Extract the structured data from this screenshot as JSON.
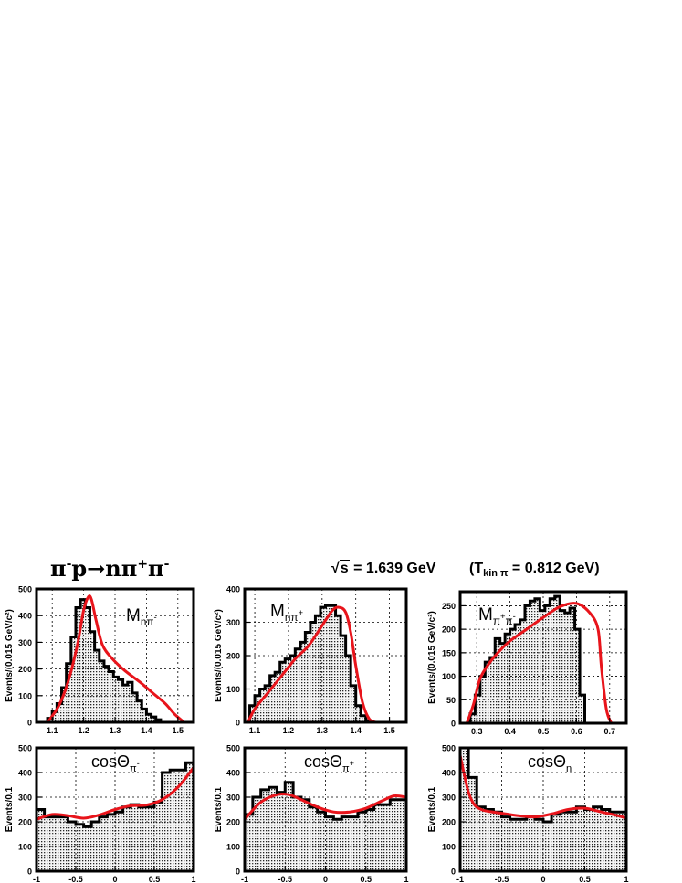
{
  "header": {
    "reaction": {
      "base": "π",
      "sup1": "-",
      "p": "p",
      "arrow": "→",
      "n": "n",
      "pi": "π",
      "sup2": "+",
      "pi2": "π",
      "sup3": "-"
    },
    "energy": {
      "root": "s",
      "rest": " = 1.639 GeV"
    },
    "tkin": {
      "open": "(T",
      "sub": "kin π",
      "rest": " = 0.812 GeV)"
    }
  },
  "colors": {
    "fit_curve": "#e8141b",
    "frame": "#000000",
    "grid": "#000000"
  },
  "chart_data": [
    {
      "type": "bar",
      "ylabel": "Events/(0.015 GeV/c²)",
      "label": {
        "base": "M",
        "sub": "nπ",
        "subsup": "-"
      },
      "xlim": [
        1.05,
        1.55
      ],
      "ylim": [
        0,
        500
      ],
      "xticks": [
        1.1,
        1.2,
        1.3,
        1.4,
        1.5
      ],
      "xtick_labels": [
        "1.1",
        "1.2",
        "1.3",
        "1.4",
        "1.5"
      ],
      "yticks": [
        0,
        100,
        200,
        300,
        400,
        500
      ],
      "ytick_labels": [
        "0",
        "100",
        "200",
        "300",
        "400",
        "500"
      ],
      "bin_start": 1.085,
      "bin_width": 0.015,
      "values": [
        15,
        40,
        70,
        130,
        220,
        320,
        430,
        460,
        430,
        340,
        270,
        230,
        210,
        190,
        170,
        160,
        140,
        150,
        110,
        80,
        50,
        30,
        20,
        10
      ],
      "fit": {
        "x": [
          1.085,
          1.12,
          1.15,
          1.18,
          1.2,
          1.215,
          1.225,
          1.24,
          1.26,
          1.29,
          1.33,
          1.38,
          1.42,
          1.46,
          1.49,
          1.52
        ],
        "y": [
          0,
          60,
          150,
          290,
          420,
          470,
          460,
          380,
          290,
          240,
          195,
          150,
          110,
          70,
          30,
          0
        ]
      }
    },
    {
      "type": "bar",
      "ylabel": "Events/(0.015 GeV/c²)",
      "label": {
        "base": "M",
        "sub": "nπ",
        "subsup": "+"
      },
      "xlim": [
        1.07,
        1.55
      ],
      "ylim": [
        0,
        400
      ],
      "xticks": [
        1.1,
        1.2,
        1.3,
        1.4,
        1.5
      ],
      "xtick_labels": [
        "1.1",
        "1.2",
        "1.3",
        "1.4",
        "1.5"
      ],
      "yticks": [
        0,
        100,
        200,
        300,
        400
      ],
      "ytick_labels": [
        "0",
        "100",
        "200",
        "300",
        "400"
      ],
      "bin_start": 1.085,
      "bin_width": 0.015,
      "values": [
        50,
        80,
        100,
        110,
        140,
        150,
        180,
        190,
        200,
        220,
        240,
        270,
        300,
        320,
        345,
        350,
        350,
        320,
        260,
        200,
        110,
        50,
        20,
        5
      ],
      "fit": {
        "x": [
          1.08,
          1.1,
          1.14,
          1.18,
          1.22,
          1.26,
          1.3,
          1.33,
          1.35,
          1.37,
          1.385,
          1.4,
          1.42,
          1.44,
          1.46
        ],
        "y": [
          0,
          40,
          90,
          140,
          190,
          230,
          290,
          335,
          345,
          330,
          270,
          170,
          60,
          10,
          0
        ]
      }
    },
    {
      "type": "bar",
      "ylabel": "Events/(0.015 GeV/c²)",
      "label": {
        "base": "M",
        "sub": "π",
        "subsup": "+",
        "sub2": "π",
        "sub2sup": "-"
      },
      "xlim": [
        0.25,
        0.75
      ],
      "ylim": [
        0,
        280
      ],
      "xticks": [
        0.3,
        0.4,
        0.5,
        0.6,
        0.7
      ],
      "xtick_labels": [
        "0.3",
        "0.4",
        "0.5",
        "0.6",
        "0.7"
      ],
      "yticks": [
        0,
        50,
        100,
        150,
        200,
        250
      ],
      "ytick_labels": [
        "0",
        "50",
        "100",
        "150",
        "200",
        "250"
      ],
      "bin_start": 0.28,
      "bin_width": 0.015,
      "values": [
        20,
        60,
        100,
        130,
        140,
        180,
        170,
        190,
        200,
        210,
        220,
        250,
        260,
        265,
        240,
        250,
        265,
        270,
        240,
        235,
        245,
        200,
        60,
        0
      ],
      "fit": {
        "x": [
          0.27,
          0.29,
          0.31,
          0.34,
          0.37,
          0.4,
          0.45,
          0.5,
          0.55,
          0.6,
          0.64,
          0.665,
          0.675,
          0.69,
          0.705
        ],
        "y": [
          0,
          40,
          95,
          130,
          155,
          175,
          200,
          225,
          248,
          255,
          235,
          200,
          120,
          30,
          0
        ]
      }
    },
    {
      "type": "bar",
      "ylabel": "Events/0.1",
      "label": {
        "base": "cosΘ",
        "sub": "π",
        "subsup": "-"
      },
      "xlim": [
        -1,
        1
      ],
      "ylim": [
        0,
        500
      ],
      "xticks": [
        -1,
        -0.5,
        0,
        0.5,
        1
      ],
      "xtick_labels": [
        "-1",
        "-0.5",
        "0",
        "0.5",
        "1"
      ],
      "yticks": [
        0,
        100,
        200,
        300,
        400,
        500
      ],
      "ytick_labels": [
        "0",
        "100",
        "200",
        "300",
        "400",
        "500"
      ],
      "bin_start": -1,
      "bin_width": 0.1,
      "values": [
        250,
        220,
        220,
        220,
        200,
        190,
        180,
        200,
        220,
        230,
        240,
        260,
        270,
        260,
        260,
        280,
        400,
        410,
        410,
        440
      ],
      "fit": {
        "x": [
          -1,
          -0.8,
          -0.6,
          -0.4,
          -0.2,
          0,
          0.2,
          0.4,
          0.6,
          0.8,
          1
        ],
        "y": [
          210,
          230,
          225,
          215,
          228,
          250,
          265,
          268,
          290,
          340,
          420
        ]
      }
    },
    {
      "type": "bar",
      "ylabel": "Events/0.1",
      "label": {
        "base": "cosΘ",
        "sub": "π",
        "subsup": "+"
      },
      "xlim": [
        -1,
        1
      ],
      "ylim": [
        0,
        500
      ],
      "xticks": [
        -1,
        -0.5,
        0,
        0.5,
        1
      ],
      "xtick_labels": [
        "-1",
        "-0.5",
        "0",
        "0.5",
        "1"
      ],
      "yticks": [
        0,
        100,
        200,
        300,
        400,
        500
      ],
      "ytick_labels": [
        "0",
        "100",
        "200",
        "300",
        "400",
        "500"
      ],
      "bin_start": -1,
      "bin_width": 0.1,
      "values": [
        230,
        300,
        330,
        340,
        320,
        360,
        300,
        290,
        260,
        240,
        220,
        210,
        220,
        220,
        240,
        250,
        270,
        270,
        290,
        290
      ],
      "fit": {
        "x": [
          -1,
          -0.8,
          -0.6,
          -0.45,
          -0.3,
          -0.1,
          0.1,
          0.3,
          0.5,
          0.7,
          0.85,
          1
        ],
        "y": [
          210,
          280,
          310,
          310,
          290,
          260,
          240,
          240,
          255,
          285,
          305,
          300
        ]
      }
    },
    {
      "type": "bar",
      "ylabel": "Events/0.1",
      "label": {
        "base": "cosΘ",
        "sub": "n"
      },
      "xlim": [
        -1,
        1
      ],
      "ylim": [
        0,
        500
      ],
      "xticks": [
        -1,
        -0.5,
        0,
        0.5,
        1
      ],
      "xtick_labels": [
        "-1",
        "-0.5",
        "0",
        "0.5",
        "1"
      ],
      "yticks": [
        0,
        100,
        200,
        300,
        400,
        500
      ],
      "ytick_labels": [
        "0",
        "100",
        "200",
        "300",
        "400",
        "500"
      ],
      "bin_start": -1,
      "bin_width": 0.1,
      "values": [
        500,
        380,
        260,
        250,
        240,
        220,
        210,
        210,
        220,
        210,
        200,
        230,
        240,
        240,
        260,
        250,
        260,
        250,
        240,
        240
      ],
      "fit": {
        "x": [
          -1,
          -0.95,
          -0.9,
          -0.85,
          -0.8,
          -0.7,
          -0.5,
          -0.3,
          -0.1,
          0.1,
          0.3,
          0.5,
          0.7,
          0.9,
          1
        ],
        "y": [
          470,
          390,
          320,
          280,
          260,
          245,
          235,
          225,
          220,
          232,
          250,
          255,
          240,
          225,
          215
        ]
      }
    }
  ]
}
